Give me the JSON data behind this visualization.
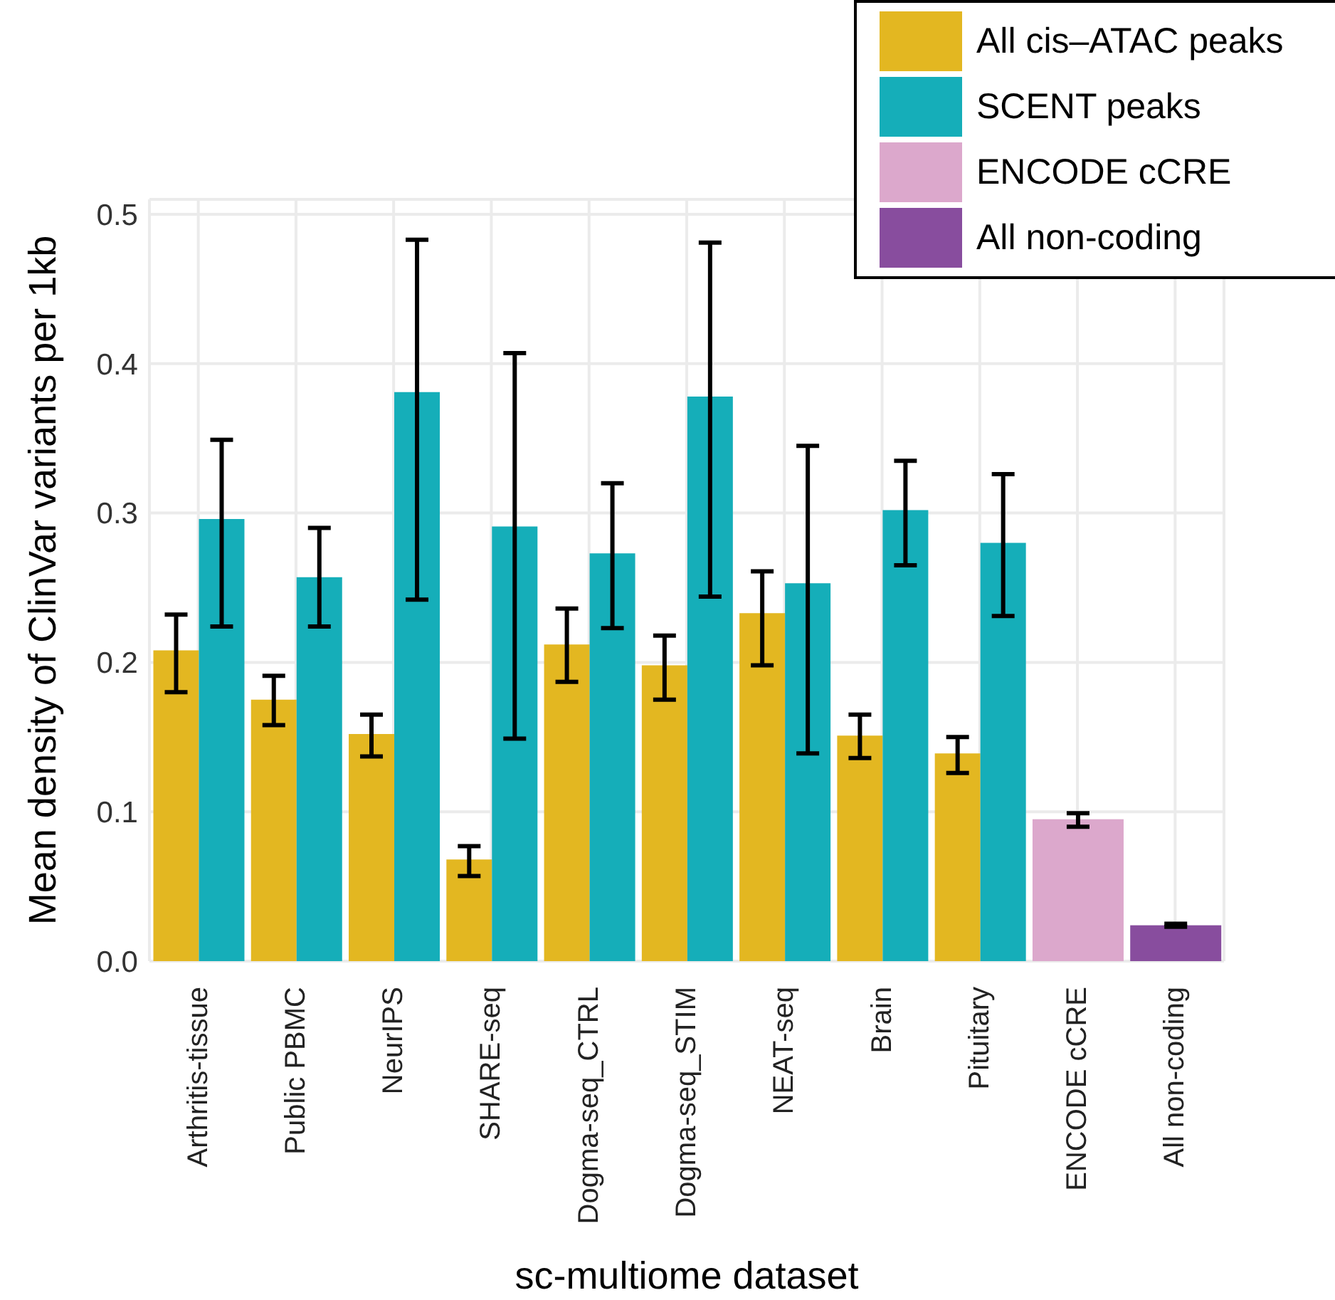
{
  "chart_data": {
    "type": "bar",
    "xlabel": "sc-multiome dataset",
    "ylabel": "Mean density of ClinVar variants per 1kb",
    "categories": [
      "Arthritis-tissue",
      "Public PBMC",
      "NeurIPS",
      "SHARE-seq",
      "Dogma-seq_CTRL",
      "Dogma-seq_STIM",
      "NEAT-seq",
      "Brain",
      "Pituitary",
      "ENCODE cCRE",
      "All non-coding"
    ],
    "series": [
      {
        "name": "All cis–ATAC peaks",
        "color": "#e3b721",
        "values": [
          0.208,
          0.175,
          0.152,
          0.068,
          0.212,
          0.198,
          0.233,
          0.151,
          0.139,
          null,
          null
        ],
        "errors": [
          [
            0.18,
            0.232
          ],
          [
            0.158,
            0.191
          ],
          [
            0.137,
            0.165
          ],
          [
            0.057,
            0.077
          ],
          [
            0.187,
            0.236
          ],
          [
            0.175,
            0.218
          ],
          [
            0.198,
            0.261
          ],
          [
            0.136,
            0.165
          ],
          [
            0.126,
            0.15
          ],
          null,
          null
        ]
      },
      {
        "name": "SCENT peaks",
        "color": "#15aeb9",
        "values": [
          0.296,
          0.257,
          0.381,
          0.291,
          0.273,
          0.378,
          0.253,
          0.302,
          0.28,
          null,
          null
        ],
        "errors": [
          [
            0.224,
            0.349
          ],
          [
            0.224,
            0.29
          ],
          [
            0.242,
            0.483
          ],
          [
            0.149,
            0.407
          ],
          [
            0.223,
            0.32
          ],
          [
            0.244,
            0.481
          ],
          [
            0.139,
            0.345
          ],
          [
            0.265,
            0.335
          ],
          [
            0.231,
            0.326
          ],
          null,
          null
        ]
      },
      {
        "name": "ENCODE cCRE",
        "color": "#dca8cc",
        "values": [
          null,
          null,
          null,
          null,
          null,
          null,
          null,
          null,
          null,
          0.095,
          null
        ],
        "errors": [
          null,
          null,
          null,
          null,
          null,
          null,
          null,
          null,
          null,
          [
            0.09,
            0.099
          ],
          null
        ]
      },
      {
        "name": "All non-coding",
        "color": "#884d9e",
        "values": [
          null,
          null,
          null,
          null,
          null,
          null,
          null,
          null,
          null,
          null,
          0.024
        ],
        "errors": [
          null,
          null,
          null,
          null,
          null,
          null,
          null,
          null,
          null,
          null,
          [
            0.023,
            0.025
          ]
        ]
      }
    ],
    "ylim": [
      0,
      0.51
    ],
    "yticks": [
      {
        "value": 0,
        "label": "0.0"
      },
      {
        "value": 0.1,
        "label": "0.1"
      },
      {
        "value": 0.2,
        "label": "0.2"
      },
      {
        "value": 0.3,
        "label": "0.3"
      },
      {
        "value": 0.4,
        "label": "0.4"
      },
      {
        "value": 0.5,
        "label": "0.5"
      }
    ],
    "grid": true,
    "legend": "top right"
  }
}
